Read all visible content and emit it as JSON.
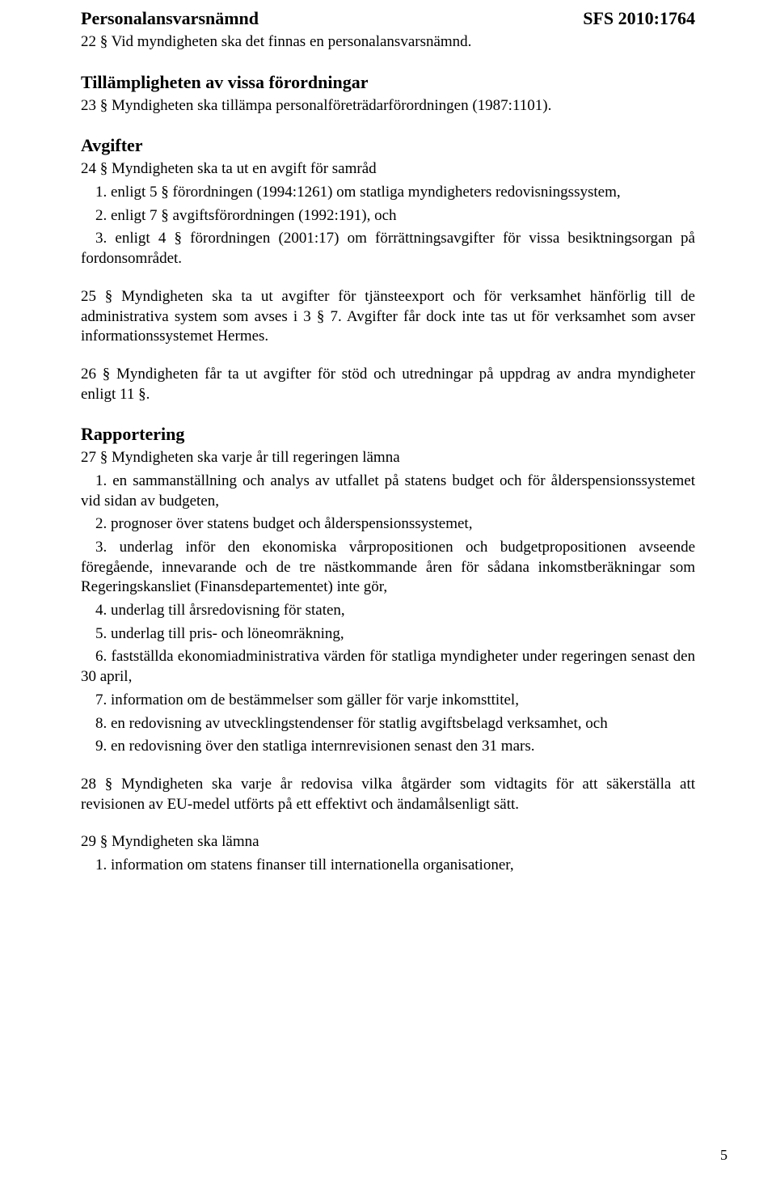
{
  "sfs_ref": "SFS 2010:1764",
  "page_number": "5",
  "sections": {
    "s1": {
      "title": "Personalansvarsnämnd",
      "p22": "22 §   Vid myndigheten ska det finnas en personalansvarsnämnd."
    },
    "s2": {
      "title": "Tillämpligheten av vissa förordningar",
      "p23": "23 §   Myndigheten ska tillämpa personalföreträdarförordningen (1987:1101)."
    },
    "s3": {
      "title": "Avgifter",
      "p24_lead": "24 §   Myndigheten ska ta ut en avgift för samråd",
      "p24_1": "1. enligt 5 § förordningen (1994:1261) om statliga myndigheters redovisningssystem,",
      "p24_2": "2. enligt 7 § avgiftsförordningen (1992:191), och",
      "p24_3": "3. enligt 4 § förordningen (2001:17) om förrättningsavgifter för vissa besiktningsorgan på fordonsområdet.",
      "p25": "25 §   Myndigheten ska ta ut avgifter för tjänsteexport och för verksamhet hänförlig till de administrativa system som avses i 3 § 7. Avgifter får dock inte tas ut för verksamhet som avser informationssystemet Hermes.",
      "p26": "26 §   Myndigheten får ta ut avgifter för stöd och utredningar på uppdrag  av andra myndigheter enligt 11 §."
    },
    "s4": {
      "title": "Rapportering",
      "p27_lead": "27 §   Myndigheten ska varje år till regeringen lämna",
      "p27_1": "1. en sammanställning och analys av utfallet på statens budget och för ålderspensionssystemet vid sidan av budgeten,",
      "p27_2": "2. prognoser över statens budget och ålderspensionssystemet,",
      "p27_3": "3. underlag inför den ekonomiska vårpropositionen och budgetpropositionen avseende föregående, innevarande och de tre nästkommande åren för sådana inkomstberäkningar som Regeringskansliet (Finansdepartementet) inte gör,",
      "p27_4": "4. underlag till årsredovisning för staten,",
      "p27_5": "5. underlag till pris- och löneomräkning,",
      "p27_6": "6. fastställda ekonomiadministrativa värden för statliga myndigheter under regeringen senast den 30 april,",
      "p27_7": "7. information  om de bestämmelser som gäller för varje inkomsttitel,",
      "p27_8": "8. en redovisning av utvecklingstendenser för statlig avgiftsbelagd verksamhet, och",
      "p27_9": "9. en redovisning över den statliga internrevisionen senast den 31 mars.",
      "p28": "28 §   Myndigheten ska varje år redovisa vilka åtgärder som vidtagits för att säkerställa att revisionen av EU-medel utförts på ett effektivt och ändamålsenligt sätt.",
      "p29_lead": "29 §   Myndigheten ska lämna",
      "p29_1": "1. information om statens finanser till internationella organisationer,"
    }
  }
}
